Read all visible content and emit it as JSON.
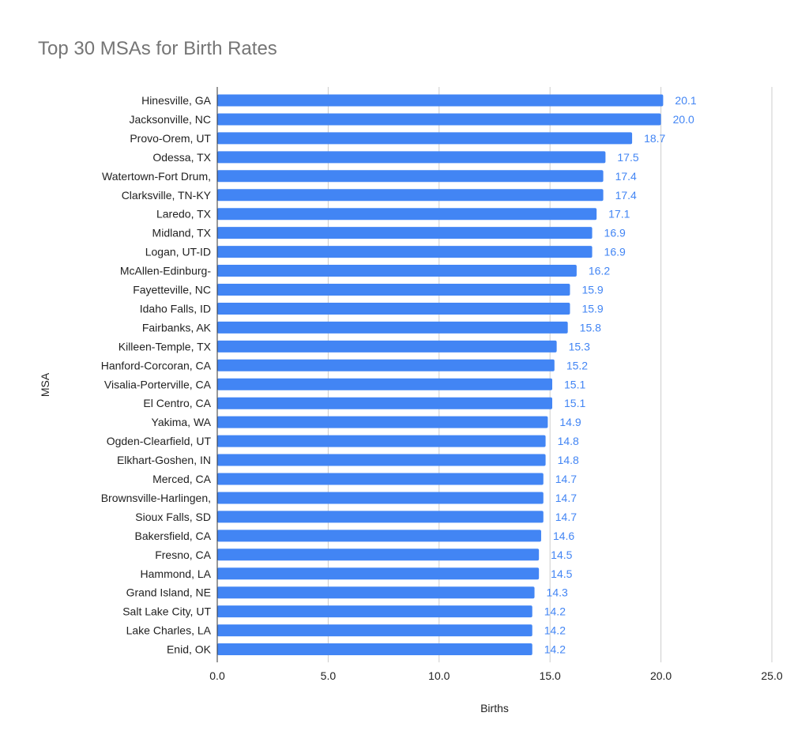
{
  "chart_data": {
    "type": "bar",
    "orientation": "horizontal",
    "title": "Top 30 MSAs for Birth Rates",
    "xlabel": "Births",
    "ylabel": "MSA",
    "xlim": [
      0,
      25
    ],
    "x_ticks": [
      "0.0",
      "5.0",
      "10.0",
      "15.0",
      "20.0",
      "25.0"
    ],
    "grid": true,
    "bar_color": "#4285F4",
    "label_color": "#4285F4",
    "categories": [
      "Hinesville, GA",
      "Jacksonville, NC",
      "Provo-Orem, UT",
      "Odessa, TX",
      "Watertown-Fort Drum,",
      "Clarksville, TN-KY",
      "Laredo, TX",
      "Midland, TX",
      "Logan, UT-ID",
      "McAllen-Edinburg-",
      "Fayetteville, NC",
      "Idaho Falls, ID",
      "Fairbanks, AK",
      "Killeen-Temple, TX",
      "Hanford-Corcoran, CA",
      "Visalia-Porterville, CA",
      "El Centro, CA",
      "Yakima, WA",
      "Ogden-Clearfield, UT",
      "Elkhart-Goshen, IN",
      "Merced, CA",
      "Brownsville-Harlingen,",
      "Sioux Falls, SD",
      "Bakersfield, CA",
      "Fresno, CA",
      "Hammond, LA",
      "Grand Island, NE",
      "Salt Lake City, UT",
      "Lake Charles, LA",
      "Enid, OK"
    ],
    "values": [
      20.1,
      20.0,
      18.7,
      17.5,
      17.4,
      17.4,
      17.1,
      16.9,
      16.9,
      16.2,
      15.9,
      15.9,
      15.8,
      15.3,
      15.2,
      15.1,
      15.1,
      14.9,
      14.8,
      14.8,
      14.7,
      14.7,
      14.7,
      14.6,
      14.5,
      14.5,
      14.3,
      14.2,
      14.2,
      14.2
    ],
    "value_labels": [
      "20.1",
      "20.0",
      "18.7",
      "17.5",
      "17.4",
      "17.4",
      "17.1",
      "16.9",
      "16.9",
      "16.2",
      "15.9",
      "15.9",
      "15.8",
      "15.3",
      "15.2",
      "15.1",
      "15.1",
      "14.9",
      "14.8",
      "14.8",
      "14.7",
      "14.7",
      "14.7",
      "14.6",
      "14.5",
      "14.5",
      "14.3",
      "14.2",
      "14.2",
      "14.2"
    ]
  }
}
